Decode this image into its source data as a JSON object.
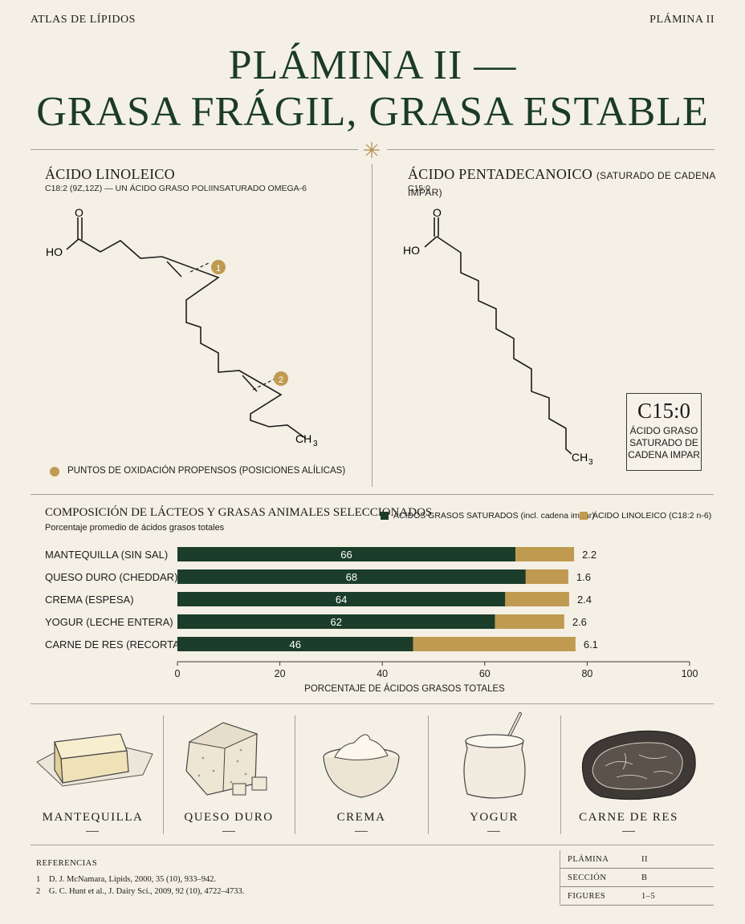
{
  "header": {
    "left": "ATLAS DE LÍPIDOS",
    "right": "PLÁMINA II"
  },
  "title": {
    "line1": "PLÁMINA II —",
    "line2": "GRASA FRÁGIL, GRASA ESTABLE"
  },
  "panel_left": {
    "title": "ÁCIDO LINOLEICO",
    "subtitle": "C18:2 (9Z,12Z) — UN ÁCIDO GRASO POLIINSATURADO OMEGA-6",
    "label_o": "O",
    "label_ho": "HO",
    "label_ch3": "CH",
    "label_ch3_sub": "3",
    "marker1": "1",
    "marker2": "2",
    "legend": "PUNTOS DE OXIDACIÓN PROPENSOS (POSICIONES ALÍLICAS)"
  },
  "panel_right": {
    "title": "ÁCIDO PENTADECANOICO",
    "title_note": "(SATURADO DE CADENA IMPAR)",
    "subtitle": "C15:0",
    "label_o": "O",
    "label_ho": "HO",
    "label_ch3": "CH",
    "label_ch3_sub": "3",
    "badge_big": "C15:0",
    "badge_small": "ÁCIDO GRASO SATURADO DE CADENA IMPAR"
  },
  "chart_data": {
    "type": "bar",
    "stacked": true,
    "orientation": "horizontal",
    "title": "COMPOSICIÓN DE LÁCTEOS Y GRASAS ANIMALES SELECCIONADOS",
    "subtitle": "Porcentaje promedio de ácidos grasos totales",
    "xlabel": "PORCENTAJE DE ÁCIDOS GRASOS TOTALES",
    "xlim": [
      0,
      100
    ],
    "xticks": [
      0,
      20,
      40,
      60,
      80,
      100
    ],
    "categories": [
      "MANTEQUILLA (SIN SAL)",
      "QUESO DURO (CHEDDAR)",
      "CREMA (ESPESA)",
      "YOGUR (LECHE ENTERA)",
      "CARNE DE RES (RECORTADA)"
    ],
    "series": [
      {
        "name": "ÁCIDOS GRASOS SATURADOS (incl. cadena impar)",
        "color": "#1b3d2a",
        "values": [
          66,
          68,
          64,
          62,
          46
        ]
      },
      {
        "name": "ÁCIDO LINOLEICO (C18:2 n-6)",
        "color": "#bf9a50",
        "values": [
          2.2,
          1.6,
          2.4,
          2.6,
          6.1
        ]
      }
    ],
    "legend": "top-right"
  },
  "foods": [
    {
      "label": "MANTEQUILLA",
      "icon": "butter-icon"
    },
    {
      "label": "QUESO DURO",
      "icon": "cheese-icon"
    },
    {
      "label": "CREMA",
      "icon": "cream-bowl-icon"
    },
    {
      "label": "YOGUR",
      "icon": "yogurt-jar-icon"
    },
    {
      "label": "CARNE DE RES",
      "icon": "beef-icon"
    }
  ],
  "references": {
    "heading": "REFERENCIAS",
    "items": [
      {
        "num": "1",
        "text": "D. J. McNamara, Lipids, 2000, 35 (10), 933–942."
      },
      {
        "num": "2",
        "text": "G. C. Hunt et al., J. Dairy Sci., 2009, 92 (10), 4722–4733."
      }
    ]
  },
  "meta": [
    {
      "key": "PLÁMINA",
      "value": "II"
    },
    {
      "key": "SECCIÓN",
      "value": "B"
    },
    {
      "key": "FIGURES",
      "value": "1–5"
    }
  ],
  "colors": {
    "green": "#1b3d2a",
    "gold": "#bf9a50",
    "paper": "#f4f0e6"
  }
}
